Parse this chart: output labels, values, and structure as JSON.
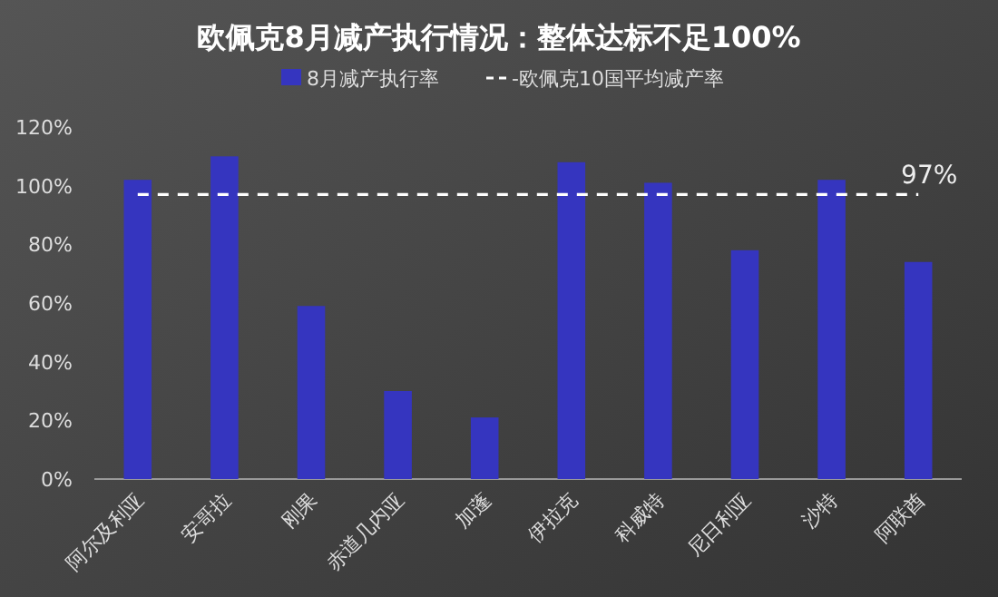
{
  "chart_data": {
    "type": "bar",
    "title": "欧佩克8月减产执行情况：整体达标不足100%",
    "categories": [
      "阿尔及利亚",
      "安哥拉",
      "刚果",
      "赤道几内亚",
      "加蓬",
      "伊拉克",
      "科威特",
      "尼日利亚",
      "沙特",
      "阿联酋"
    ],
    "series": [
      {
        "name": "8月减产执行率",
        "color": "#3535bf",
        "values": [
          102,
          110,
          59,
          30,
          21,
          108,
          101,
          78,
          102,
          74
        ]
      },
      {
        "name": "-欧佩克10国平均减产率",
        "type": "line",
        "color": "#ffffff",
        "line_style": "dashed",
        "marker": "none",
        "values": [
          97,
          97,
          97,
          97,
          97,
          97,
          97,
          97,
          97,
          97
        ],
        "value_labels": [
          null,
          null,
          null,
          null,
          null,
          null,
          null,
          null,
          null,
          "97%"
        ]
      }
    ],
    "ylim": [
      0,
      120
    ],
    "yticks": [
      {
        "value": 0,
        "label": "0%"
      },
      {
        "value": 20,
        "label": "20%"
      },
      {
        "value": 40,
        "label": "40%"
      },
      {
        "value": 60,
        "label": "60%"
      },
      {
        "value": 80,
        "label": "80%"
      },
      {
        "value": 100,
        "label": "100%"
      },
      {
        "value": 120,
        "label": "120%"
      }
    ],
    "grid": false,
    "legend": "top"
  }
}
